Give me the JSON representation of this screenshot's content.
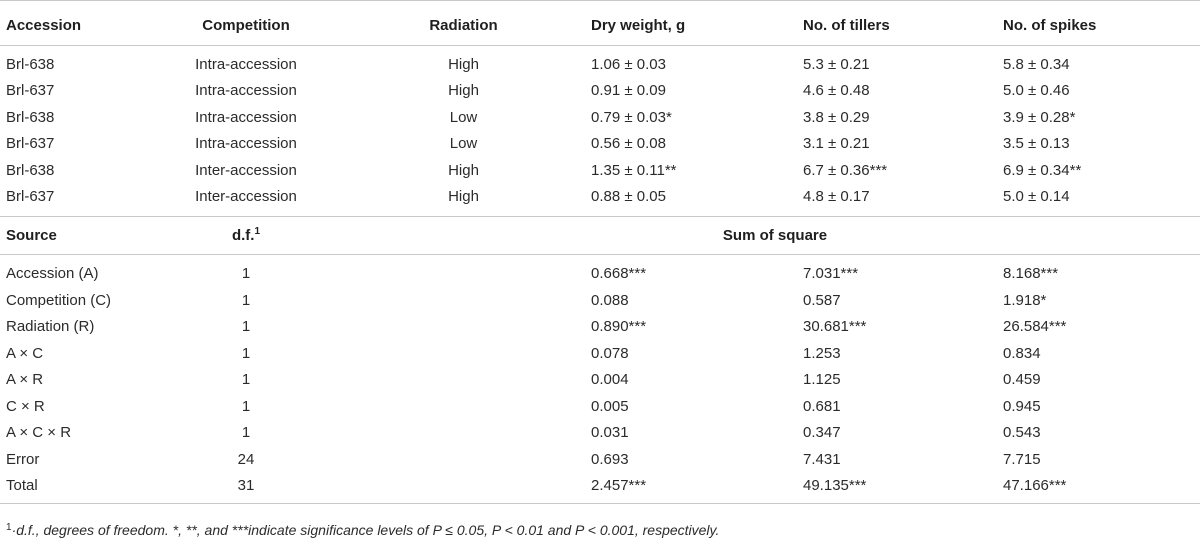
{
  "header": {
    "accession": "Accession",
    "competition": "Competition",
    "radiation": "Radiation",
    "dry_weight": "Dry weight, g",
    "tillers": "No. of tillers",
    "spikes": "No. of spikes"
  },
  "rows": [
    {
      "accession": "Brl-638",
      "competition": "Intra-accession",
      "radiation": "High",
      "dry_weight": "1.06 ± 0.03",
      "tillers": "5.3 ± 0.21",
      "spikes": "5.8 ± 0.34"
    },
    {
      "accession": "Brl-637",
      "competition": "Intra-accession",
      "radiation": "High",
      "dry_weight": "0.91 ± 0.09",
      "tillers": "4.6 ± 0.48",
      "spikes": "5.0 ± 0.46"
    },
    {
      "accession": "Brl-638",
      "competition": "Intra-accession",
      "radiation": "Low",
      "dry_weight": "0.79 ± 0.03*",
      "tillers": "3.8 ± 0.29",
      "spikes": "3.9 ± 0.28*"
    },
    {
      "accession": "Brl-637",
      "competition": "Intra-accession",
      "radiation": "Low",
      "dry_weight": "0.56 ± 0.08",
      "tillers": "3.1 ± 0.21",
      "spikes": "3.5 ± 0.13"
    },
    {
      "accession": "Brl-638",
      "competition": "Inter-accession",
      "radiation": "High",
      "dry_weight": "1.35 ± 0.11**",
      "tillers": "6.7 ± 0.36***",
      "spikes": "6.9 ± 0.34**"
    },
    {
      "accession": "Brl-637",
      "competition": "Inter-accession",
      "radiation": "High",
      "dry_weight": "0.88 ± 0.05",
      "tillers": "4.8 ± 0.17",
      "spikes": "5.0 ± 0.14"
    }
  ],
  "anova_header": {
    "source": "Source",
    "df": "d.f.",
    "df_sup": "1",
    "sum_of_square": "Sum of square"
  },
  "anova_rows": [
    {
      "source": "Accession (A)",
      "df": "1",
      "dry_weight": "0.668***",
      "tillers": "7.031***",
      "spikes": "8.168***"
    },
    {
      "source": "Competition (C)",
      "df": "1",
      "dry_weight": "0.088",
      "tillers": "0.587",
      "spikes": "1.918*"
    },
    {
      "source": "Radiation (R)",
      "df": "1",
      "dry_weight": "0.890***",
      "tillers": "30.681***",
      "spikes": "26.584***"
    },
    {
      "source": "A × C",
      "df": "1",
      "dry_weight": "0.078",
      "tillers": "1.253",
      "spikes": "0.834"
    },
    {
      "source": "A × R",
      "df": "1",
      "dry_weight": "0.004",
      "tillers": "1.125",
      "spikes": "0.459"
    },
    {
      "source": "C × R",
      "df": "1",
      "dry_weight": "0.005",
      "tillers": "0.681",
      "spikes": "0.945"
    },
    {
      "source": "A × C × R",
      "df": "1",
      "dry_weight": "0.031",
      "tillers": "0.347",
      "spikes": "0.543"
    },
    {
      "source": "Error",
      "df": "24",
      "dry_weight": "0.693",
      "tillers": "7.431",
      "spikes": "7.715"
    },
    {
      "source": "Total",
      "df": "31",
      "dry_weight": "2.457***",
      "tillers": "49.135***",
      "spikes": "47.166***"
    }
  ],
  "footnote": {
    "mark": "1",
    "text": "·d.f., degrees of freedom. *, **, and ***indicate significance levels of P ≤ 0.05, P < 0.01 and P < 0.001, respectively."
  }
}
